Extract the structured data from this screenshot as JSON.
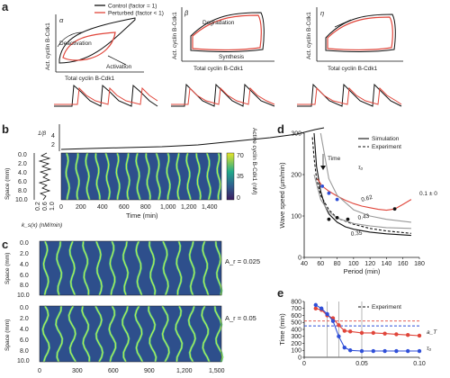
{
  "panels": {
    "a": {
      "label": "a",
      "legend": [
        {
          "name": "Control (factor = 1)",
          "color": "#111111"
        },
        {
          "name": "Perturbed (factor < 1)",
          "color": "#e0453a"
        }
      ],
      "subplots": [
        {
          "greek": "α",
          "xlabel": "Total cyclin B-Cdk1",
          "ylabel": "Act. cyclin B-Cdk1",
          "annotations": [
            "Deactivation",
            "Activation"
          ]
        },
        {
          "greek": "β",
          "xlabel": "Total cyclin B-Cdk1",
          "ylabel": "Act. cyclin B-Cdk1",
          "annotations": [
            "Degradation",
            "Synthesis"
          ]
        },
        {
          "greek": "η",
          "xlabel": "Total cyclin B-Cdk1",
          "ylabel": "Act. cyclin B-Cdk1",
          "annotations": []
        }
      ]
    },
    "b": {
      "label": "b",
      "top_axis_label": "1/β",
      "top_ticks": [
        "4",
        "2"
      ],
      "yaxis_label": "Space (mm)",
      "yticks": [
        "0.0",
        "2.0",
        "4.0",
        "6.0",
        "8.0",
        "10.0"
      ],
      "side_xlabel": "k_s(x) (nM/min)",
      "side_xticks": [
        "0.2",
        "0.6",
        "1.0"
      ],
      "xaxis_label": "Time (min)",
      "xticks": [
        "0",
        "200",
        "400",
        "600",
        "800",
        "1,000",
        "1,200",
        "1,400"
      ],
      "colorbar_ticks": [
        "70",
        "35",
        "0"
      ],
      "colorbar_label": "Active cyclin B-Cdk1 (nM)"
    },
    "c": {
      "label": "c",
      "heatmaps": [
        {
          "annotation": "A_r = 0.025"
        },
        {
          "annotation": "A_r = 0.05"
        }
      ],
      "yaxis_label": "Space (mm)",
      "yticks": [
        "0.0",
        "2.0",
        "4.0",
        "6.0",
        "8.0",
        "10.0"
      ],
      "xticks": [
        "0",
        "300",
        "600",
        "900",
        "1,200",
        "1,500"
      ]
    },
    "d": {
      "label": "d",
      "annotations": [
        "Time",
        "τ₀",
        "0.62",
        "0.43",
        "0.35",
        "0.1 ± 0"
      ]
    },
    "e": {
      "label": "e",
      "annotations": [
        "a_T",
        "τ₀"
      ]
    }
  },
  "chart_data": [
    {
      "type": "line",
      "panel": "d",
      "xlabel": "Period (min)",
      "ylabel": "Wave speed (μm/min)",
      "xlim": [
        40,
        180
      ],
      "ylim": [
        0,
        300
      ],
      "xticks": [
        40,
        60,
        80,
        100,
        120,
        140,
        160,
        180
      ],
      "yticks": [
        0,
        100,
        200,
        300
      ],
      "grid": false,
      "legend_position": "top-right",
      "series": [
        {
          "name": "Simulation",
          "style": "solid",
          "color": "#111111",
          "x": [
            52,
            55,
            60,
            65,
            70,
            80,
            90,
            100,
            120,
            140,
            170
          ],
          "y": [
            300,
            220,
            160,
            125,
            105,
            85,
            74,
            68,
            61,
            57,
            53
          ]
        },
        {
          "name": "Experiment",
          "style": "dashed",
          "color": "#111111",
          "x": [
            50,
            52,
            55,
            60,
            70,
            80,
            100,
            120,
            140,
            170
          ],
          "y": [
            290,
            240,
            190,
            150,
            115,
            95,
            80,
            70,
            64,
            58
          ]
        },
        {
          "style": "solid",
          "color": "#e0453a",
          "x": [
            56,
            62,
            70,
            80,
            90,
            100,
            110,
            120,
            130,
            140,
            150,
            160,
            170
          ],
          "y": [
            190,
            172,
            160,
            148,
            138,
            130,
            124,
            120,
            116,
            114,
            117,
            128,
            140
          ]
        },
        {
          "style": "solid",
          "color": "#999999",
          "x": [
            60,
            70,
            80,
            100,
            120,
            140,
            170
          ],
          "y": [
            300,
            190,
            150,
            115,
            100,
            92,
            85
          ]
        },
        {
          "style": "solid",
          "color": "#999999",
          "x": [
            52,
            60,
            70,
            80,
            100,
            120,
            140,
            170
          ],
          "y": [
            200,
            140,
            110,
            95,
            82,
            76,
            72,
            70
          ]
        }
      ],
      "points": {
        "blue": {
          "color": "#2f4fd8",
          "x": [
            62,
            70,
            80
          ],
          "y": [
            172,
            155,
            140
          ]
        },
        "black": {
          "color": "#111111",
          "x": [
            70,
            80,
            93,
            150
          ],
          "y": [
            92,
            96,
            92,
            117
          ]
        }
      }
    },
    {
      "type": "line",
      "panel": "e",
      "xlabel": "",
      "ylabel": "Time (min)",
      "xlim": [
        0,
        0.1
      ],
      "ylim": [
        0,
        800
      ],
      "xticks": [
        0,
        0.05,
        0.1
      ],
      "yticks": [
        0,
        100,
        200,
        300,
        400,
        500,
        600,
        700,
        800
      ],
      "xtick_labels": [
        "0",
        "0.05",
        "0.10"
      ],
      "grid": false,
      "legend_position": "top-right",
      "vlines": [
        0.02,
        0.03,
        0.05
      ],
      "hlines": [
        {
          "y": 520,
          "color": "#e0453a",
          "style": "dashed",
          "name": "Experiment"
        },
        {
          "y": 450,
          "color": "#2f4fd8",
          "style": "dashed"
        }
      ],
      "series": [
        {
          "color": "#e0453a",
          "x": [
            0.01,
            0.015,
            0.02,
            0.025,
            0.03,
            0.035,
            0.04,
            0.05,
            0.06,
            0.07,
            0.08,
            0.09,
            0.1
          ],
          "y": [
            700,
            680,
            600,
            560,
            460,
            380,
            370,
            350,
            350,
            340,
            330,
            320,
            310
          ]
        },
        {
          "color": "#2f4fd8",
          "x": [
            0.01,
            0.015,
            0.02,
            0.025,
            0.03,
            0.035,
            0.04,
            0.05,
            0.06,
            0.07,
            0.08,
            0.09,
            0.1
          ],
          "y": [
            750,
            700,
            620,
            520,
            300,
            140,
            100,
            90,
            90,
            90,
            90,
            90,
            90
          ]
        }
      ]
    }
  ]
}
